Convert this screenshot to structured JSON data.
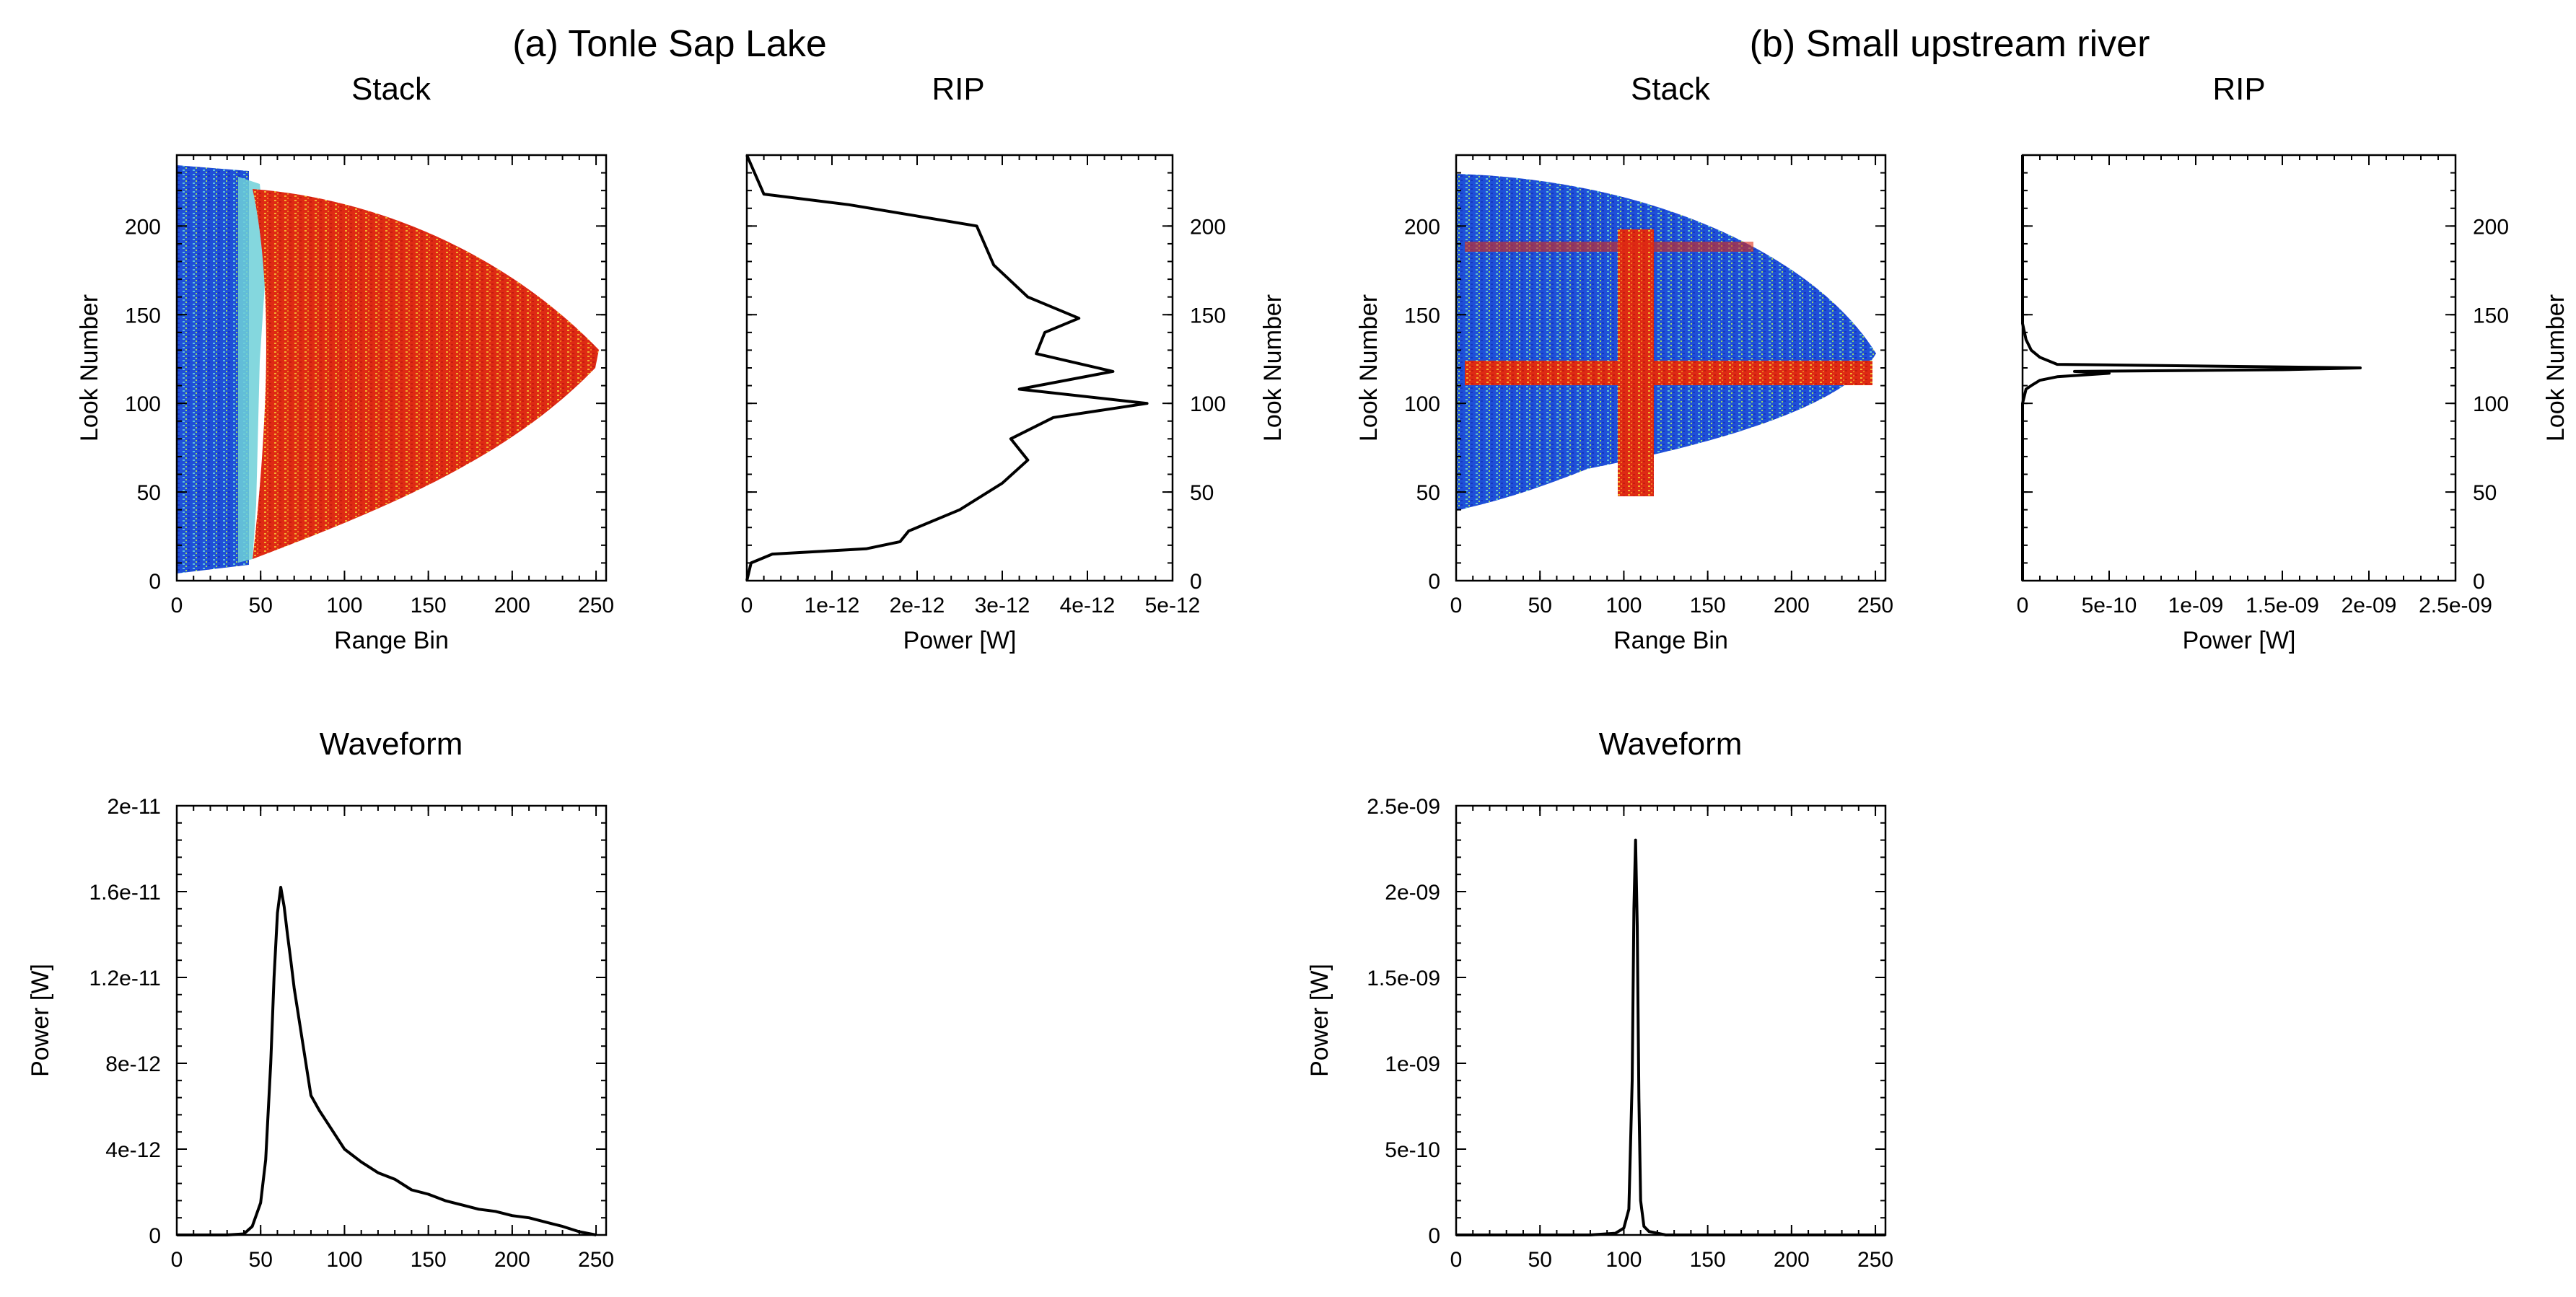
{
  "figure": {
    "panels": [
      {
        "title": "(a) Tonle Sap Lake",
        "stack_title": "Stack",
        "rip_title": "RIP",
        "waveform_title": "Waveform"
      },
      {
        "title": "(b) Small upstream river",
        "stack_title": "Stack",
        "rip_title": "RIP",
        "waveform_title": "Waveform"
      }
    ],
    "colors": {
      "stack_low": "#1a3fd4",
      "stack_mid": "#6fd0d8",
      "stack_high": "#e02a12",
      "line": "#000000"
    }
  },
  "chart_data": [
    {
      "id": "a-stack",
      "type": "heatmap",
      "title": "Stack",
      "xlabel": "Range Bin",
      "ylabel": "Look Number",
      "xlim": [
        0,
        256
      ],
      "ylim": [
        0,
        240
      ],
      "xticks": [
        "0",
        "50",
        "100",
        "150",
        "200",
        "250"
      ],
      "yticks": [
        "0",
        "50",
        "100",
        "150",
        "200"
      ],
      "description_values": {
        "low_region_bins": [
          0,
          50
        ],
        "high_region_bins": [
          55,
          252
        ],
        "look_range": [
          5,
          238
        ]
      }
    },
    {
      "id": "a-rip",
      "type": "line",
      "title": "RIP",
      "xlabel": "Power [W]",
      "ylabel": "Look Number",
      "xlim": [
        0,
        5e-12
      ],
      "ylim": [
        0,
        240
      ],
      "xticks": [
        "0",
        "1e-12",
        "2e-12",
        "3e-12",
        "4e-12",
        "5e-12"
      ],
      "yticks": [
        "0",
        "50",
        "100",
        "150",
        "200"
      ],
      "x": [
        0,
        5e-14,
        3e-13,
        1.4e-12,
        1.8e-12,
        1.9e-12,
        2.5e-12,
        3e-12,
        3.3e-12,
        3.1e-12,
        3.6e-12,
        4.7e-12,
        3.2e-12,
        4.3e-12,
        3.4e-12,
        3.5e-12,
        3.9e-12,
        3.3e-12,
        2.9e-12,
        2.7e-12,
        1.2e-12,
        2e-13,
        0
      ],
      "y": [
        0,
        10,
        15,
        18,
        22,
        28,
        40,
        55,
        68,
        80,
        92,
        100,
        108,
        118,
        128,
        140,
        148,
        160,
        178,
        200,
        212,
        218,
        240
      ]
    },
    {
      "id": "a-waveform",
      "type": "line",
      "title": "Waveform",
      "xlabel": "",
      "ylabel": "Power [W]",
      "xlim": [
        0,
        256
      ],
      "ylim": [
        0,
        2e-11
      ],
      "xticks": [
        "0",
        "50",
        "100",
        "150",
        "200",
        "250"
      ],
      "yticks": [
        "0",
        "4e-12",
        "8e-12",
        "1.2e-11",
        "1.6e-11",
        "2e-11"
      ],
      "x": [
        0,
        30,
        40,
        45,
        50,
        53,
        56,
        58,
        60,
        62,
        64,
        66,
        68,
        70,
        75,
        80,
        85,
        90,
        100,
        110,
        120,
        130,
        140,
        150,
        160,
        170,
        180,
        190,
        200,
        210,
        220,
        230,
        240,
        250
      ],
      "y": [
        0,
        0,
        5e-14,
        4e-13,
        1.5e-12,
        3.5e-12,
        8e-12,
        1.2e-11,
        1.5e-11,
        1.62e-11,
        1.53e-11,
        1.4e-11,
        1.28e-11,
        1.15e-11,
        9e-12,
        6.5e-12,
        5.8e-12,
        5.2e-12,
        4e-12,
        3.4e-12,
        2.9e-12,
        2.6e-12,
        2.1e-12,
        1.9e-12,
        1.6e-12,
        1.4e-12,
        1.2e-12,
        1.1e-12,
        9e-13,
        8e-13,
        6e-13,
        4e-13,
        1.5e-13,
        0
      ]
    },
    {
      "id": "b-stack",
      "type": "heatmap",
      "title": "Stack",
      "xlabel": "Range Bin",
      "ylabel": "Look Number",
      "xlim": [
        0,
        256
      ],
      "ylim": [
        0,
        240
      ],
      "xticks": [
        "0",
        "50",
        "100",
        "150",
        "200",
        "250"
      ],
      "yticks": [
        "0",
        "50",
        "100",
        "150",
        "200"
      ],
      "description_values": {
        "bright_column_bins": [
          95,
          118
        ],
        "bright_row_looks": [
          112,
          128
        ],
        "look_range": [
          40,
          228
        ]
      }
    },
    {
      "id": "b-rip",
      "type": "line",
      "title": "RIP",
      "xlabel": "Power [W]",
      "ylabel": "Look Number",
      "xlim": [
        0,
        2.5e-09
      ],
      "ylim": [
        0,
        240
      ],
      "xticks": [
        "0",
        "5e-10",
        "1e-09",
        "1.5e-09",
        "2e-09",
        "2.5e-09"
      ],
      "yticks": [
        "0",
        "50",
        "100",
        "150",
        "200"
      ],
      "x": [
        0,
        0,
        2e-11,
        5e-11,
        1e-10,
        2e-10,
        5e-10,
        3e-10,
        1.5e-09,
        1.95e-09,
        2e-10,
        1e-10,
        5e-11,
        2e-11,
        0,
        0
      ],
      "y": [
        0,
        100,
        108,
        110,
        113,
        115,
        117,
        118,
        119,
        120,
        122,
        126,
        130,
        136,
        145,
        240
      ]
    },
    {
      "id": "b-waveform",
      "type": "line",
      "title": "Waveform",
      "xlabel": "",
      "ylabel": "Power [W]",
      "xlim": [
        0,
        256
      ],
      "ylim": [
        0,
        2.5e-09
      ],
      "xticks": [
        "0",
        "50",
        "100",
        "150",
        "200",
        "250"
      ],
      "yticks": [
        "0",
        "5e-10",
        "1e-09",
        "1.5e-09",
        "2e-09",
        "2.5e-09"
      ],
      "x": [
        0,
        80,
        95,
        100,
        103,
        105,
        106,
        107,
        108,
        109,
        110,
        112,
        115,
        125,
        256
      ],
      "y": [
        0,
        0,
        1e-11,
        4e-11,
        1.5e-10,
        9e-10,
        1.9e-09,
        2.3e-09,
        1.8e-09,
        8e-10,
        2e-10,
        5e-11,
        2e-11,
        0,
        0
      ]
    }
  ]
}
